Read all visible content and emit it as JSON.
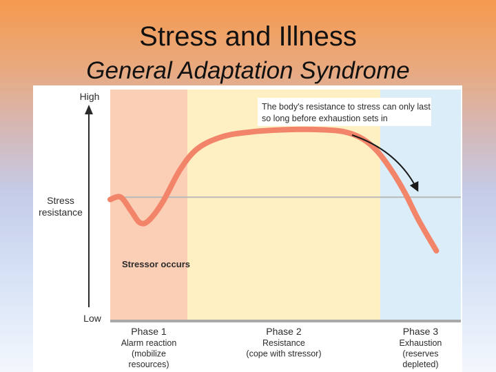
{
  "slide": {
    "title": "Stress and Illness",
    "subtitle": "General Adaptation Syndrome"
  },
  "chart_data": {
    "type": "line",
    "ylabel": "Stress resistance",
    "y_high_label": "High",
    "y_low_label": "Low",
    "ylim": [
      0,
      1
    ],
    "baseline_level": 0.52,
    "annotation_callout": "The body's resistance to stress can only last so long before exhaustion sets in",
    "stressor_label": "Stressor occurs",
    "phases": [
      {
        "name": "Phase 1",
        "desc": [
          "Alarm reaction",
          "(mobilize",
          "resources)"
        ],
        "color": "#fbcfb5",
        "x_range": [
          0,
          0.22
        ]
      },
      {
        "name": "Phase 2",
        "desc": [
          "Resistance",
          "(cope with stressor)"
        ],
        "color": "#fff0c4",
        "x_range": [
          0.22,
          0.77
        ]
      },
      {
        "name": "Phase 3",
        "desc": [
          "Exhaustion",
          "(reserves",
          "depleted)"
        ],
        "color": "#dcedfa",
        "x_range": [
          0.77,
          1.0
        ]
      }
    ],
    "series": [
      {
        "color": "#f2846a",
        "x": [
          0.0,
          0.03,
          0.06,
          0.085,
          0.11,
          0.15,
          0.2,
          0.25,
          0.32,
          0.4,
          0.5,
          0.6,
          0.67,
          0.72,
          0.76,
          0.8,
          0.84,
          0.88,
          0.93
        ],
        "y": [
          0.51,
          0.52,
          0.46,
          0.41,
          0.42,
          0.5,
          0.64,
          0.73,
          0.78,
          0.8,
          0.81,
          0.81,
          0.8,
          0.77,
          0.72,
          0.64,
          0.54,
          0.42,
          0.29
        ]
      }
    ]
  }
}
